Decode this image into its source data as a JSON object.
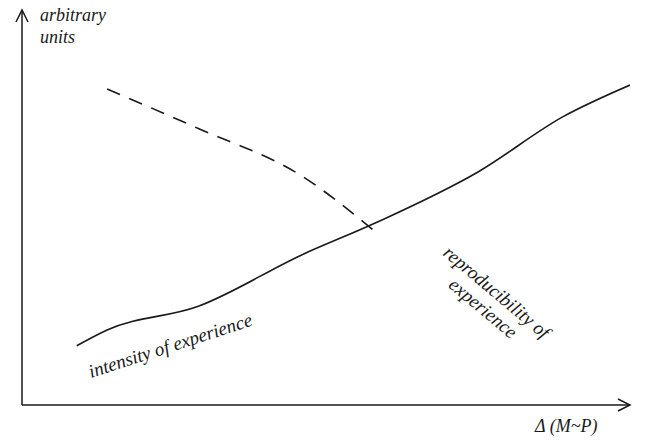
{
  "chart_data": {
    "type": "line",
    "xlabel": "Δ (M~P)",
    "ylabel": "arbitrary units",
    "x": [
      0.9,
      1.4,
      2.9,
      4.6,
      5.8,
      7.5,
      8.9,
      10
    ],
    "series": [
      {
        "name": "intensity of experience",
        "color": "#1a1a1a",
        "line_style": "solid",
        "values": [
          1.5,
          1.9,
          2.5,
          3.8,
          4.6,
          5.9,
          7.3,
          8.1
        ]
      },
      {
        "name": "reproducibility of experience",
        "color": "#1a1a1a",
        "line_style": "dashed",
        "values": [
          null,
          8.0,
          7.0,
          5.8,
          4.4,
          null,
          null,
          null
        ]
      }
    ],
    "xlim": [
      0,
      10
    ],
    "ylim": [
      0,
      10
    ],
    "tick_labels": false,
    "grid": false
  }
}
